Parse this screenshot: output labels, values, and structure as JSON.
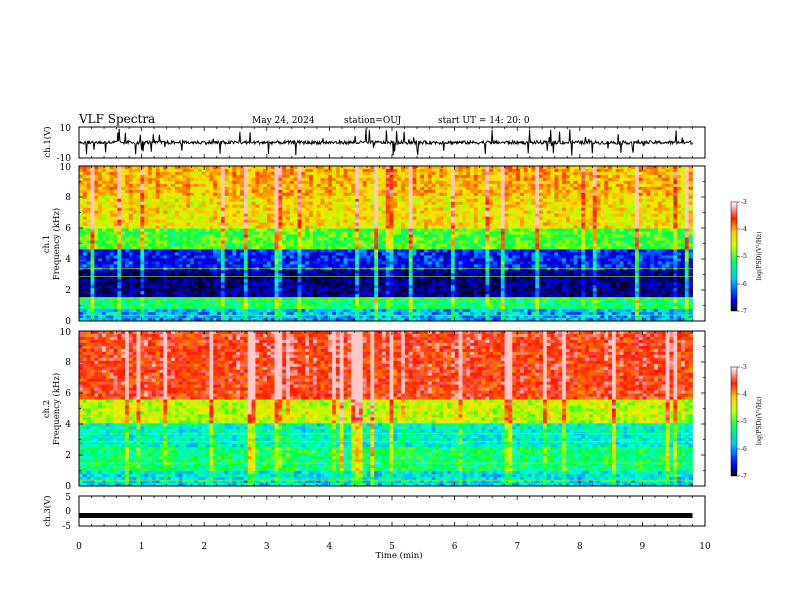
{
  "header": {
    "title": "VLF Spectra",
    "date": "May 24, 2024",
    "station": "station=OUJ",
    "start": "start  UT  =   14: 20: 0"
  },
  "chart_data": [
    {
      "type": "line",
      "panel": "ch1-waveform",
      "ylabel": "ch.1(V)",
      "ylim": [
        -10,
        10
      ],
      "yticks": [
        "10",
        "-10"
      ],
      "xlim": [
        0,
        10
      ],
      "baseline": 0,
      "spike_range": [
        -9,
        9
      ],
      "trace_end": 9.8
    },
    {
      "type": "heatmap",
      "panel": "ch1-spectrogram",
      "ylabel": "ch.1\nFrequency (kHz)",
      "ylim": [
        0,
        10
      ],
      "yticks": [
        "0",
        "2",
        "4",
        "6",
        "8",
        "10"
      ],
      "xlim": [
        0,
        10
      ],
      "trace_end": 9.8,
      "description": "log(PSD) in V^2/Hz; high (red) above ~6 kHz, low (blue) 1.5–4.5 kHz",
      "bands": [
        {
          "f_low": 0,
          "f_high": 0.8,
          "level": -5.8
        },
        {
          "f_low": 0.8,
          "f_high": 1.6,
          "level": -5.2
        },
        {
          "f_low": 1.6,
          "f_high": 3.2,
          "level": -6.7
        },
        {
          "f_low": 3.2,
          "f_high": 4.6,
          "level": -6.3
        },
        {
          "f_low": 4.6,
          "f_high": 6.0,
          "level": -5.0
        },
        {
          "f_low": 6.0,
          "f_high": 8.0,
          "level": -4.4
        },
        {
          "f_low": 8.0,
          "f_high": 10.0,
          "level": -4.2
        }
      ],
      "colorbar": {
        "label": "log(PSD)(V²/Hz)",
        "range": [
          -7,
          -3
        ],
        "ticks": [
          "-3",
          "-4",
          "-5",
          "-6",
          "-7"
        ]
      }
    },
    {
      "type": "heatmap",
      "panel": "ch2-spectrogram",
      "ylabel": "ch.2\nFrequency (kHz)",
      "ylim": [
        0,
        10
      ],
      "yticks": [
        "0",
        "2",
        "4",
        "6",
        "8",
        "10"
      ],
      "xlim": [
        0,
        10
      ],
      "trace_end": 9.8,
      "description": "log(PSD) in V^2/Hz; red above ~5 kHz, green/cyan below 4 kHz",
      "bands": [
        {
          "f_low": 0,
          "f_high": 1.0,
          "level": -5.6
        },
        {
          "f_low": 1.0,
          "f_high": 2.5,
          "level": -5.2
        },
        {
          "f_low": 2.5,
          "f_high": 4.0,
          "level": -5.5
        },
        {
          "f_low": 4.0,
          "f_high": 5.5,
          "level": -4.6
        },
        {
          "f_low": 5.5,
          "f_high": 10.0,
          "level": -3.6
        }
      ],
      "colorbar": {
        "label": "log(PSD)(V²/Hz)",
        "range": [
          -7,
          -3
        ],
        "ticks": [
          "-3",
          "-4",
          "-5",
          "-6",
          "-7"
        ]
      }
    },
    {
      "type": "line",
      "panel": "ch3-waveform",
      "ylabel": "ch.3(V)",
      "ylim": [
        -5,
        5
      ],
      "yticks": [
        "5",
        "0",
        "-5"
      ],
      "xlim": [
        0,
        10
      ],
      "value": -1.5,
      "trace_end": 9.8
    }
  ],
  "xaxis": {
    "label": "Time (min)",
    "ticks": [
      "0",
      "1",
      "2",
      "3",
      "4",
      "5",
      "6",
      "7",
      "8",
      "9",
      "10"
    ]
  },
  "colors": {
    "colormap": [
      "#000080",
      "#0000ff",
      "#00bfff",
      "#00ffff",
      "#00ff00",
      "#c8ff00",
      "#ffff00",
      "#ff8000",
      "#ff0000",
      "#ffc8c8"
    ]
  }
}
